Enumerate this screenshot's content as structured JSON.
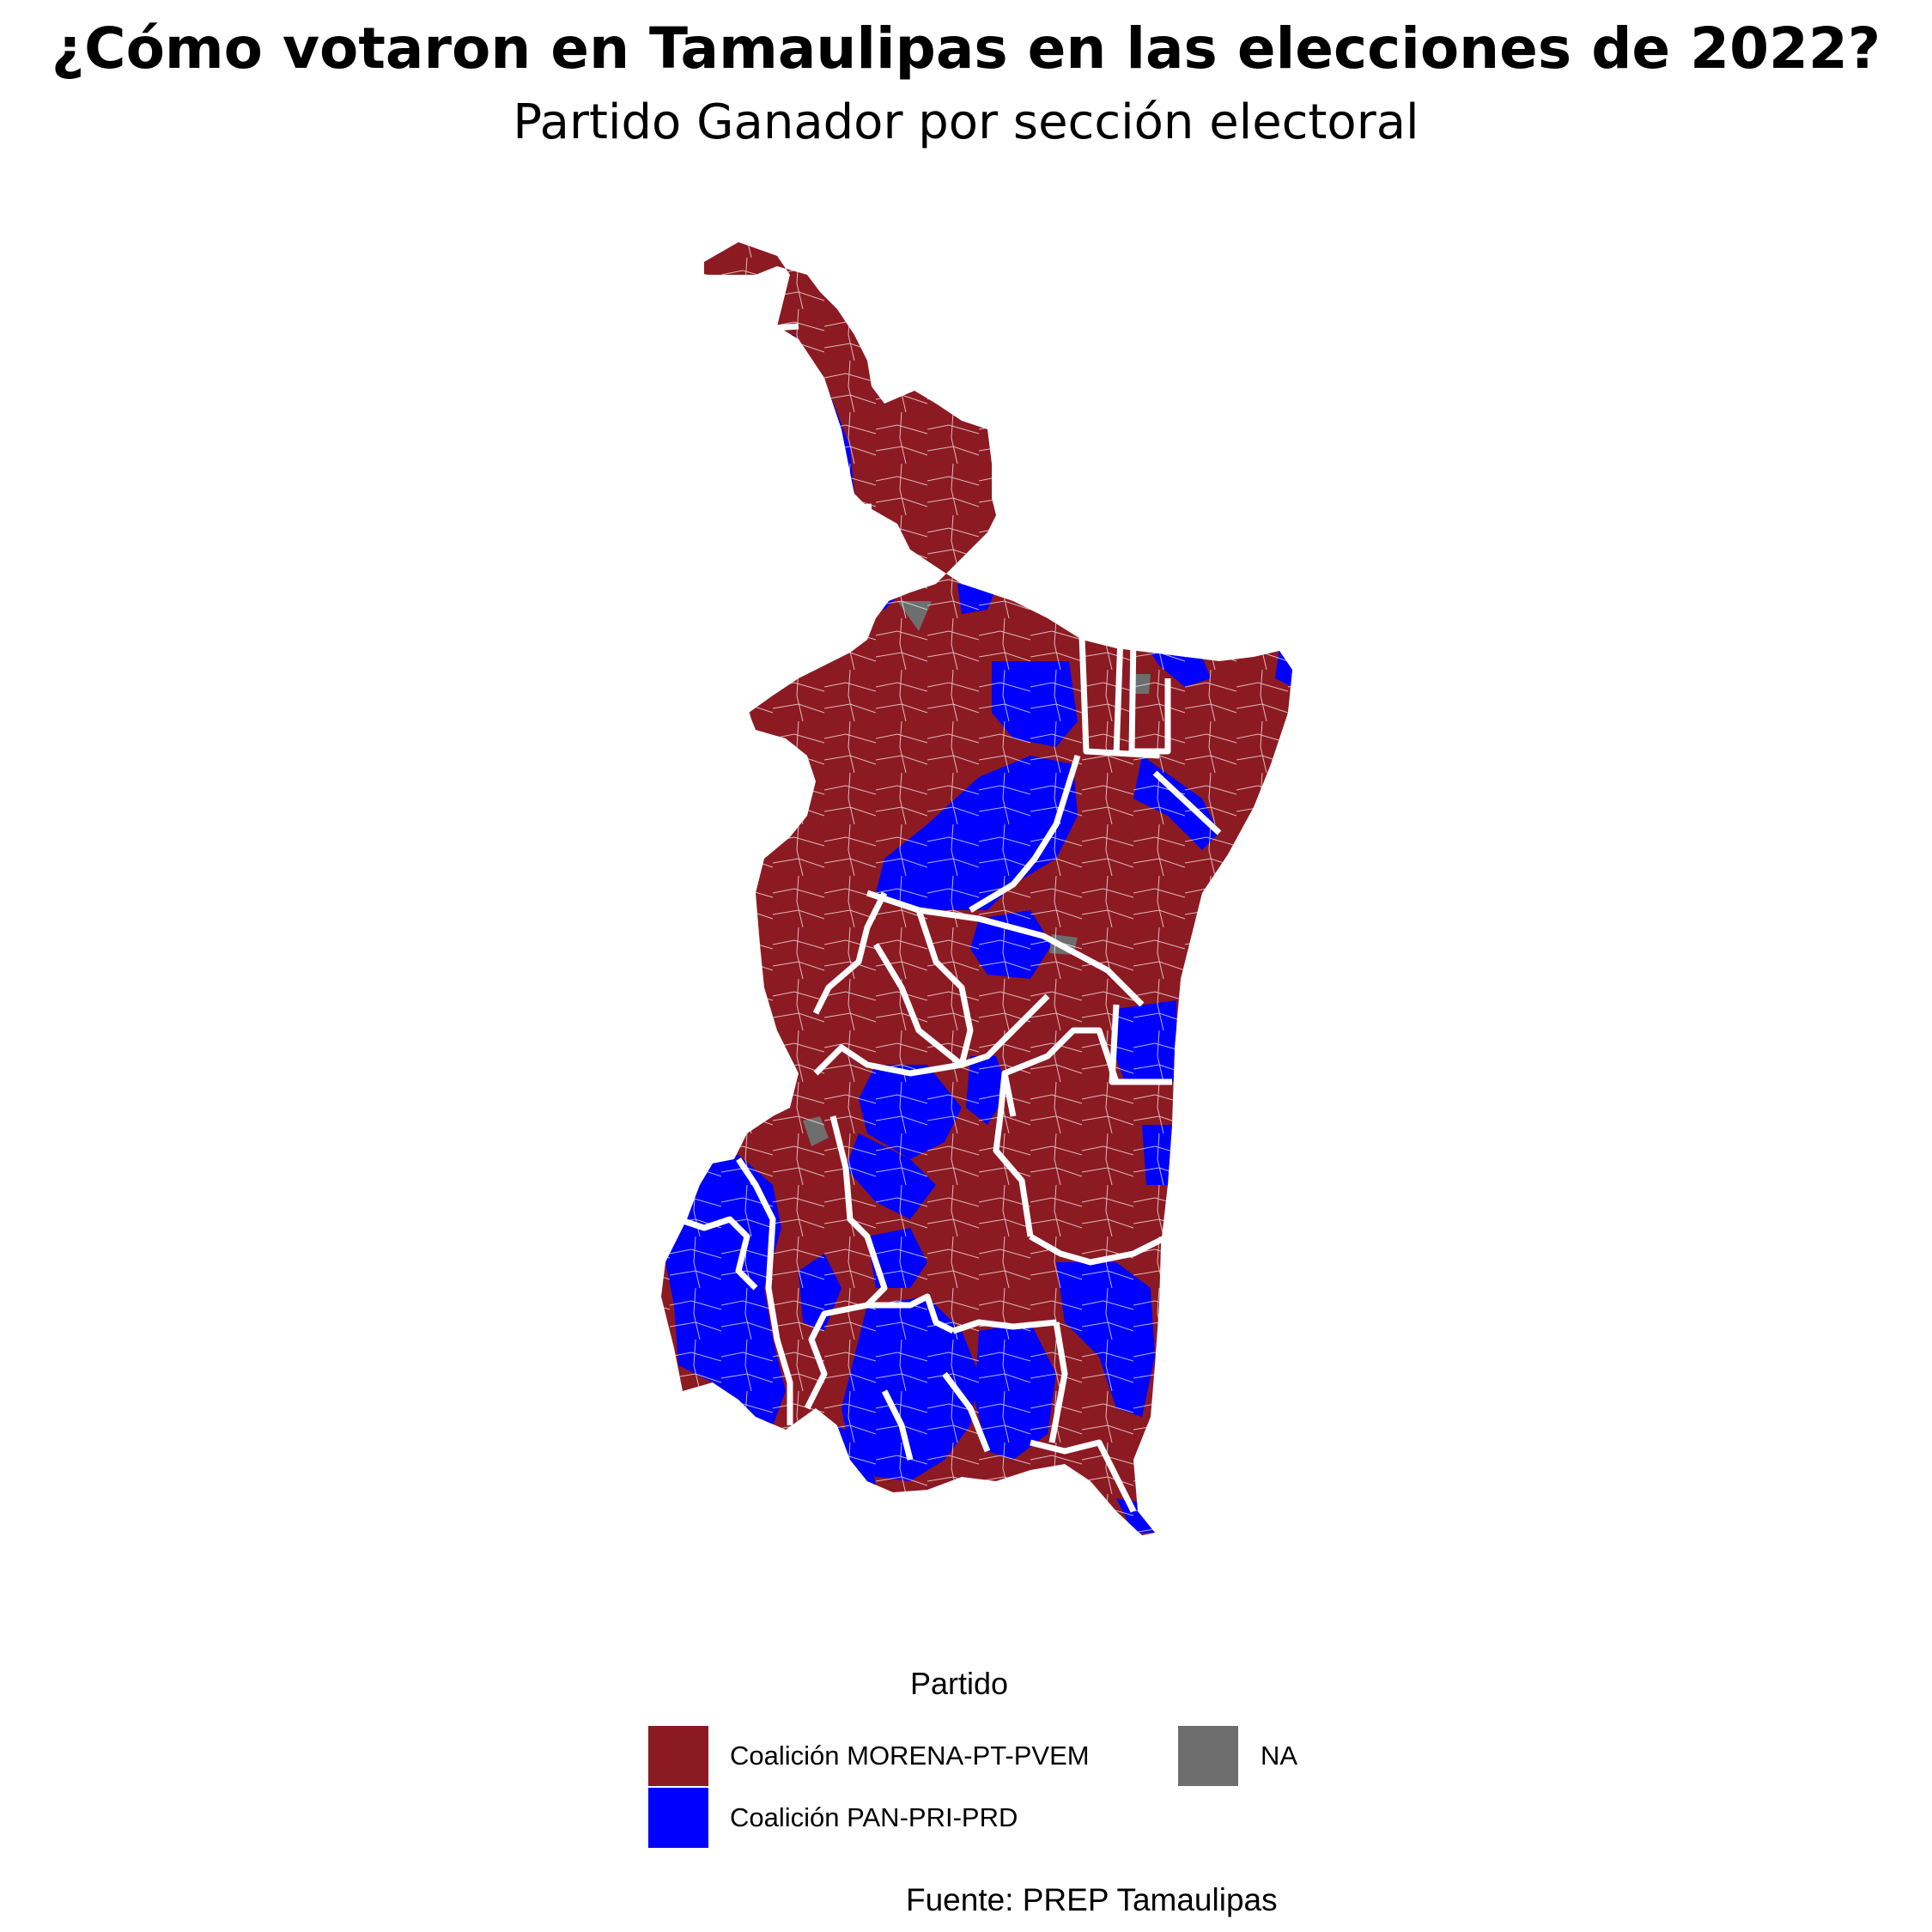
{
  "title": "¿Cómo votaron en Tamaulipas en las elecciones de 2022?",
  "subtitle": "Partido Ganador por sección electoral",
  "legend": {
    "title": "Partido",
    "items": [
      {
        "label": "Coalición MORENA-PT-PVEM",
        "color": "#8c1a22"
      },
      {
        "label": "NA",
        "color": "#6e6e6e"
      },
      {
        "label": "Coalición PAN-PRI-PRD",
        "color": "#0000ff"
      }
    ]
  },
  "caption": "Fuente: PREP Tamaulipas",
  "colors": {
    "morena": "#8c1a22",
    "pan": "#0000ff",
    "na": "#6e6e6e",
    "boundary": "#ffffff"
  }
}
